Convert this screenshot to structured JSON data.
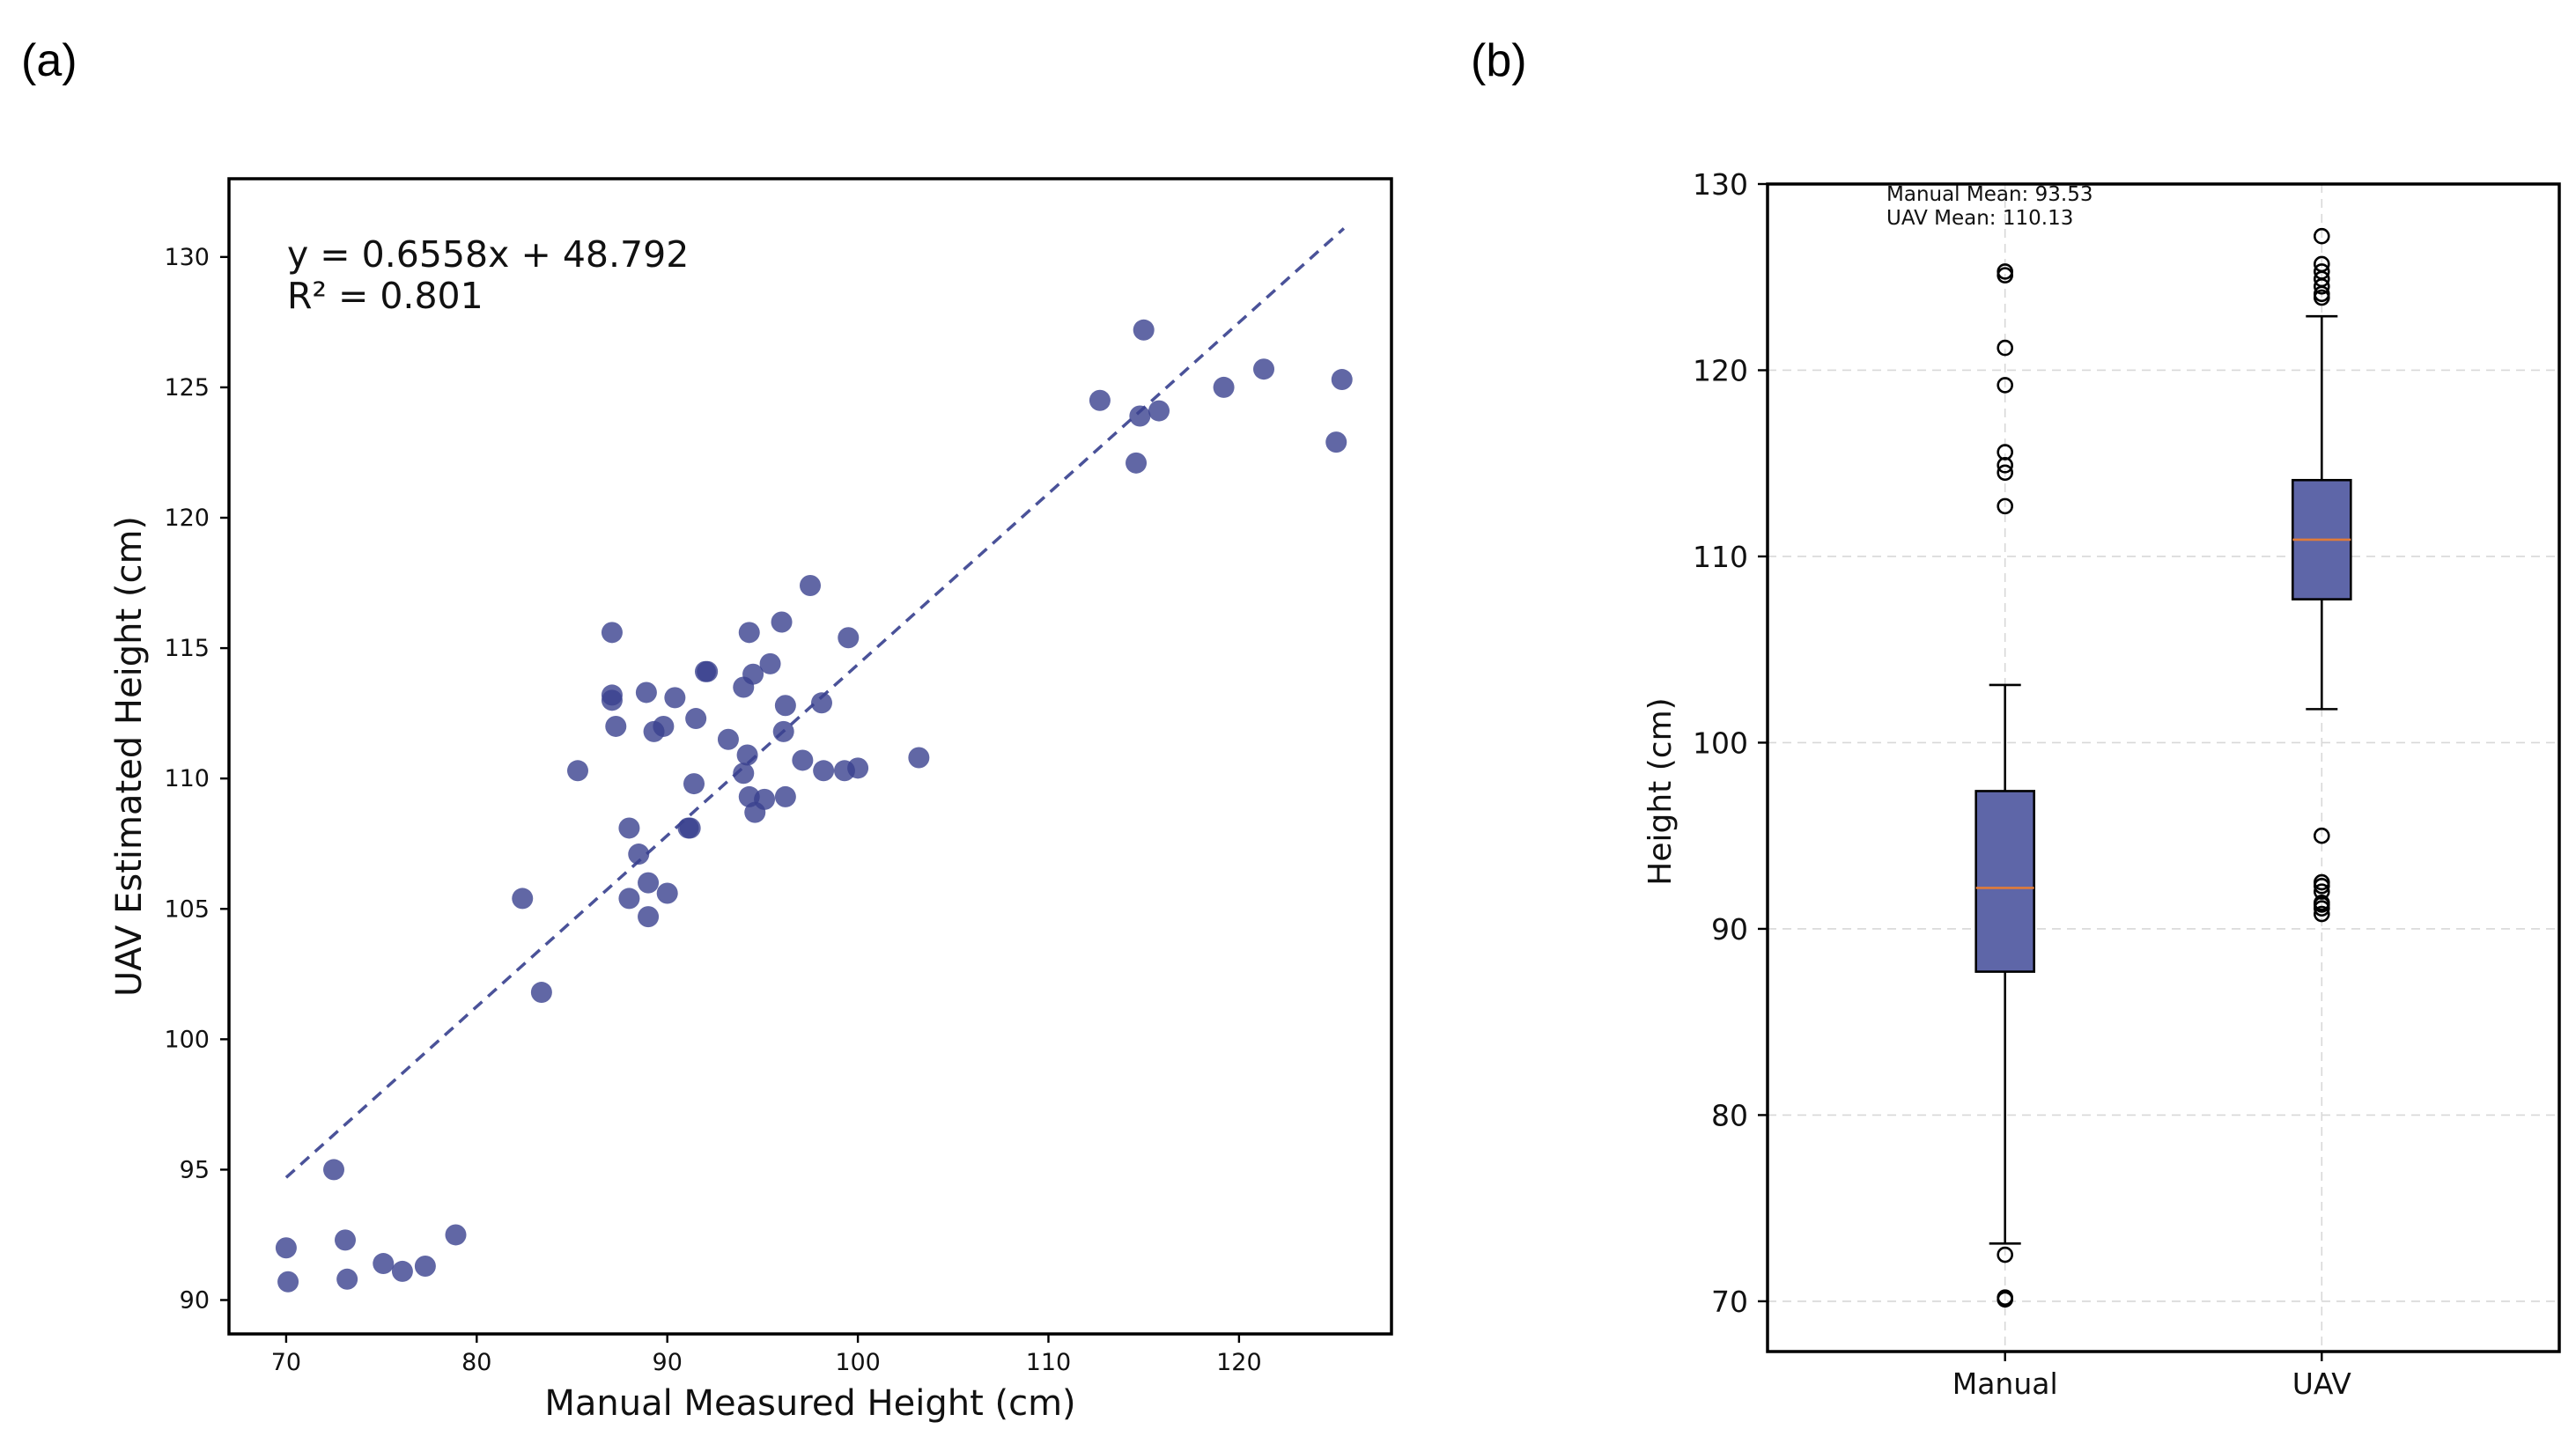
{
  "panels": {
    "a": {
      "label": "(a)"
    },
    "b": {
      "label": "(b)"
    }
  },
  "colors": {
    "scatter": "#3a418f",
    "fit_line": "#4a5299",
    "box_fill": "#5e66a8",
    "median": "#e07b39"
  },
  "chart_data": [
    {
      "panel": "a",
      "type": "scatter",
      "title": "",
      "xlabel": "Manual Measured Height (cm)",
      "ylabel": "UAV Estimated Height (cm)",
      "xlim": [
        67,
        128
      ],
      "ylim": [
        88.7,
        133
      ],
      "xticks": [
        70,
        80,
        90,
        100,
        110,
        120
      ],
      "yticks": [
        90,
        95,
        100,
        105,
        110,
        115,
        120,
        125,
        130
      ],
      "grid": false,
      "annotation": {
        "equation": "y = 0.6558x + 48.792",
        "r2": "R² = 0.801"
      },
      "fit": {
        "slope": 0.6558,
        "intercept": 48.792,
        "x_range": [
          70,
          125.5
        ]
      },
      "points": [
        [
          70.0,
          92.0
        ],
        [
          70.1,
          90.7
        ],
        [
          72.5,
          95.0
        ],
        [
          73.1,
          92.3
        ],
        [
          73.2,
          90.8
        ],
        [
          75.1,
          91.4
        ],
        [
          76.1,
          91.1
        ],
        [
          77.3,
          91.3
        ],
        [
          78.9,
          92.5
        ],
        [
          82.4,
          105.4
        ],
        [
          83.4,
          101.8
        ],
        [
          85.3,
          110.3
        ],
        [
          87.1,
          115.6
        ],
        [
          87.1,
          113.2
        ],
        [
          87.1,
          113.0
        ],
        [
          87.3,
          112.0
        ],
        [
          88.0,
          108.1
        ],
        [
          88.0,
          105.4
        ],
        [
          88.5,
          107.1
        ],
        [
          88.9,
          113.3
        ],
        [
          89.0,
          106.0
        ],
        [
          89.0,
          104.7
        ],
        [
          89.3,
          111.8
        ],
        [
          89.8,
          112.0
        ],
        [
          90.0,
          105.6
        ],
        [
          90.4,
          113.1
        ],
        [
          91.1,
          108.1
        ],
        [
          91.2,
          108.1
        ],
        [
          91.4,
          109.8
        ],
        [
          91.5,
          112.3
        ],
        [
          92.0,
          114.1
        ],
        [
          92.1,
          114.1
        ],
        [
          93.2,
          111.5
        ],
        [
          94.0,
          110.2
        ],
        [
          94.0,
          113.5
        ],
        [
          94.2,
          110.9
        ],
        [
          94.3,
          115.6
        ],
        [
          94.3,
          109.3
        ],
        [
          94.5,
          114.0
        ],
        [
          94.6,
          108.7
        ],
        [
          95.1,
          109.2
        ],
        [
          95.4,
          114.4
        ],
        [
          96.0,
          116.0
        ],
        [
          96.1,
          111.8
        ],
        [
          96.2,
          112.8
        ],
        [
          96.2,
          109.3
        ],
        [
          97.1,
          110.7
        ],
        [
          97.5,
          117.4
        ],
        [
          98.1,
          112.9
        ],
        [
          98.2,
          110.3
        ],
        [
          99.3,
          110.3
        ],
        [
          99.5,
          115.4
        ],
        [
          100.0,
          110.4
        ],
        [
          103.2,
          110.8
        ],
        [
          112.7,
          124.5
        ],
        [
          114.6,
          122.1
        ],
        [
          114.8,
          123.9
        ],
        [
          115.0,
          127.2
        ],
        [
          115.8,
          124.1
        ],
        [
          119.2,
          125.0
        ],
        [
          121.3,
          125.7
        ],
        [
          125.1,
          122.9
        ],
        [
          125.4,
          125.3
        ]
      ]
    },
    {
      "panel": "b",
      "type": "box",
      "title": "",
      "xlabel": "",
      "ylabel": "Height (cm)",
      "ylim": [
        67.3,
        130
      ],
      "yticks": [
        70,
        80,
        90,
        100,
        110,
        120,
        130
      ],
      "grid": true,
      "annotations": [
        "Manual Mean: 93.53",
        "UAV Mean: 110.13"
      ],
      "categories": [
        "Manual",
        "UAV"
      ],
      "boxes": [
        {
          "name": "Manual",
          "whisker_low": 73.1,
          "q1": 87.7,
          "median": 92.2,
          "q3": 97.4,
          "whisker_high": 103.1,
          "outliers": [
            125.3,
            125.1,
            121.2,
            119.2,
            115.6,
            114.9,
            114.5,
            112.7,
            72.5,
            70.2,
            70.1
          ]
        },
        {
          "name": "UAV",
          "whisker_low": 101.8,
          "q1": 107.7,
          "median": 110.9,
          "q3": 114.1,
          "whisker_high": 122.9,
          "outliers": [
            127.2,
            125.7,
            125.3,
            124.9,
            124.5,
            124.1,
            123.9,
            95.0,
            92.5,
            92.3,
            92.0,
            91.4,
            91.3,
            91.1,
            90.8
          ]
        }
      ]
    }
  ]
}
